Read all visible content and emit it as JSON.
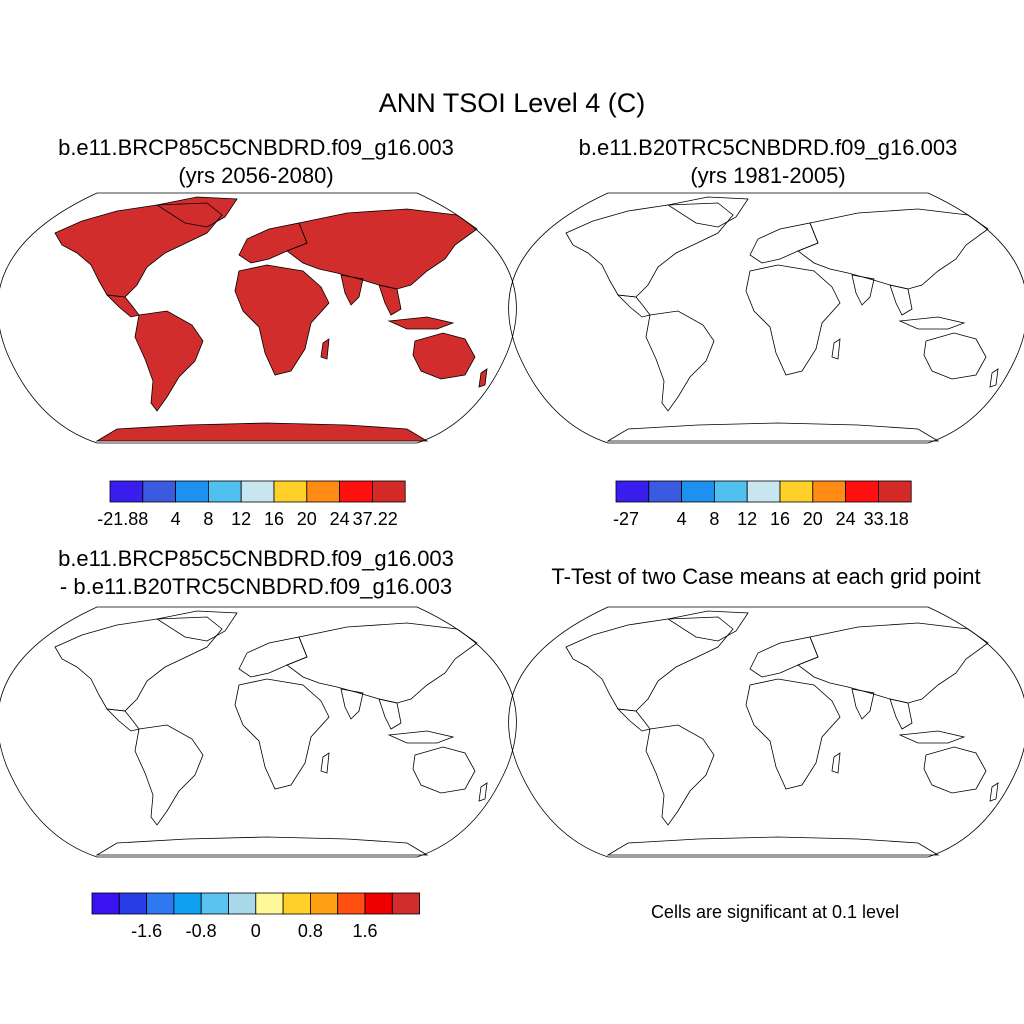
{
  "main_title": "ANN TSOI Level 4 (C)",
  "panels": [
    {
      "title_line1": "b.e11.BRCP85C5CNBDRD.f09_g16.003",
      "title_line2": "(yrs 2056-2080)",
      "colorbar": {
        "colors": [
          "#3a1eee",
          "#3a5ae0",
          "#1e90f0",
          "#50c0f0",
          "#c8e6f0",
          "#ffd02a",
          "#ff8a14",
          "#ff1010",
          "#d32a28"
        ],
        "labels": [
          "-21.88",
          "4",
          "8",
          "12",
          "16",
          "20",
          "24",
          "37.22"
        ]
      }
    },
    {
      "title_line1": "b.e11.B20TRC5CNBDRD.f09_g16.003",
      "title_line2": "(yrs 1981-2005)",
      "colorbar": {
        "colors": [
          "#3a1eee",
          "#3a5ae0",
          "#1e90f0",
          "#50c0f0",
          "#c8e6f0",
          "#ffd02a",
          "#ff8a14",
          "#ff1010",
          "#d32a28"
        ],
        "labels": [
          "-27",
          "4",
          "8",
          "12",
          "16",
          "20",
          "24",
          "33.18"
        ]
      }
    },
    {
      "title_line1": "b.e11.BRCP85C5CNBDRD.f09_g16.003",
      "title_line2": "- b.e11.B20TRC5CNBDRD.f09_g16.003",
      "colorbar": {
        "colors": [
          "#3a14f0",
          "#2a3ee8",
          "#2e78f0",
          "#12a0f0",
          "#5ac2f0",
          "#a8d8ea",
          "#fff898",
          "#ffd02a",
          "#ffa014",
          "#ff5010",
          "#ee0000",
          "#d22d2d"
        ],
        "labels": [
          "-1.6",
          "-0.8",
          "0",
          "0.8",
          "1.6"
        ]
      }
    },
    {
      "title_line1": "T-Test of two Case means at each grid point",
      "note": "Cells are significant at 0.1 level"
    }
  ],
  "map_colors": {
    "hot": "#d22d2d",
    "red": "#ff1010",
    "orange": "#ff8a14",
    "yellow": "#ffd02a",
    "pale": "#c8e6f0",
    "light_blue": "#50c0f0",
    "blue": "#1e90f0",
    "dark_blue": "#3a5ae0",
    "indigo": "#3a1eee",
    "diff_land": "#d22d2d",
    "ttest_land": "#ff0000"
  }
}
